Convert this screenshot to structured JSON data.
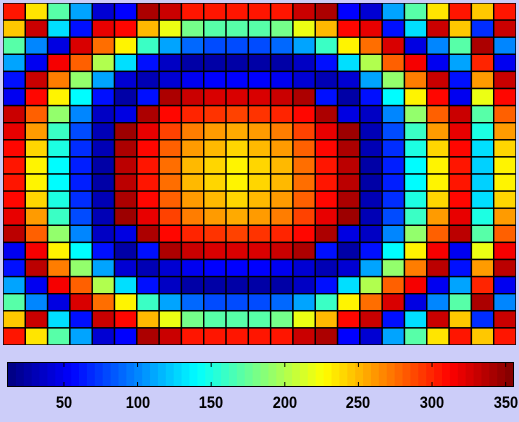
{
  "chart_data": {
    "type": "heatmap",
    "rows": 20,
    "cols": 23,
    "grid": true,
    "colormap": "jet",
    "color_range": [
      12,
      355
    ],
    "cell_values": [
      [
        305,
        235,
        170,
        110,
        40,
        55,
        340,
        330,
        305,
        305,
        305,
        305,
        305,
        330,
        340,
        55,
        40,
        110,
        170,
        235,
        305,
        245,
        305
      ],
      [
        245,
        330,
        130,
        60,
        320,
        310,
        250,
        220,
        180,
        170,
        170,
        170,
        180,
        220,
        250,
        310,
        320,
        60,
        130,
        330,
        245,
        70,
        330
      ],
      [
        170,
        100,
        45,
        325,
        275,
        230,
        160,
        110,
        90,
        80,
        80,
        80,
        90,
        110,
        160,
        230,
        275,
        325,
        45,
        100,
        170,
        340,
        100
      ],
      [
        110,
        50,
        315,
        280,
        200,
        130,
        60,
        35,
        25,
        25,
        25,
        25,
        25,
        35,
        60,
        130,
        200,
        280,
        315,
        50,
        110,
        300,
        50
      ],
      [
        60,
        330,
        270,
        190,
        110,
        40,
        30,
        40,
        50,
        55,
        55,
        55,
        50,
        40,
        30,
        40,
        110,
        190,
        270,
        330,
        60,
        260,
        330
      ],
      [
        50,
        310,
        230,
        140,
        60,
        25,
        60,
        340,
        330,
        325,
        325,
        325,
        330,
        340,
        60,
        25,
        60,
        140,
        230,
        310,
        50,
        220,
        310
      ],
      [
        330,
        280,
        190,
        100,
        35,
        45,
        340,
        310,
        300,
        295,
        290,
        295,
        300,
        310,
        340,
        45,
        35,
        100,
        190,
        280,
        330,
        170,
        280
      ],
      [
        320,
        260,
        160,
        80,
        30,
        345,
        320,
        290,
        270,
        260,
        255,
        260,
        270,
        290,
        320,
        345,
        30,
        80,
        160,
        260,
        320,
        150,
        260
      ],
      [
        310,
        240,
        150,
        70,
        30,
        340,
        310,
        280,
        260,
        250,
        240,
        250,
        260,
        280,
        310,
        340,
        30,
        70,
        150,
        240,
        310,
        130,
        240
      ],
      [
        305,
        230,
        140,
        65,
        25,
        335,
        305,
        275,
        250,
        240,
        230,
        240,
        250,
        275,
        305,
        335,
        25,
        65,
        140,
        230,
        305,
        125,
        230
      ],
      [
        305,
        230,
        140,
        65,
        25,
        335,
        305,
        275,
        250,
        240,
        230,
        240,
        250,
        275,
        305,
        335,
        25,
        65,
        140,
        230,
        305,
        125,
        230
      ],
      [
        310,
        240,
        150,
        70,
        30,
        340,
        310,
        280,
        260,
        250,
        240,
        250,
        260,
        280,
        310,
        340,
        30,
        70,
        150,
        240,
        310,
        130,
        240
      ],
      [
        320,
        260,
        160,
        80,
        30,
        345,
        320,
        290,
        270,
        260,
        255,
        260,
        270,
        290,
        320,
        345,
        30,
        80,
        160,
        260,
        320,
        150,
        260
      ],
      [
        335,
        280,
        190,
        100,
        35,
        45,
        340,
        310,
        300,
        295,
        290,
        295,
        300,
        310,
        340,
        45,
        35,
        100,
        190,
        280,
        335,
        170,
        280
      ],
      [
        50,
        315,
        230,
        140,
        60,
        25,
        60,
        340,
        330,
        325,
        325,
        325,
        330,
        340,
        60,
        25,
        60,
        140,
        230,
        315,
        50,
        220,
        315
      ],
      [
        60,
        335,
        270,
        190,
        110,
        40,
        30,
        40,
        50,
        55,
        55,
        55,
        50,
        40,
        30,
        40,
        110,
        190,
        270,
        335,
        60,
        260,
        335
      ],
      [
        110,
        50,
        315,
        280,
        200,
        130,
        60,
        35,
        25,
        25,
        25,
        25,
        25,
        35,
        60,
        130,
        200,
        280,
        315,
        50,
        110,
        300,
        50
      ],
      [
        170,
        100,
        45,
        325,
        275,
        230,
        160,
        110,
        90,
        80,
        80,
        80,
        90,
        110,
        160,
        230,
        275,
        325,
        45,
        100,
        170,
        340,
        100
      ],
      [
        245,
        330,
        130,
        60,
        330,
        310,
        250,
        220,
        180,
        170,
        170,
        170,
        180,
        220,
        250,
        310,
        330,
        60,
        130,
        330,
        245,
        70,
        330
      ],
      [
        305,
        235,
        170,
        110,
        40,
        55,
        340,
        330,
        305,
        305,
        305,
        305,
        305,
        330,
        340,
        55,
        40,
        110,
        170,
        235,
        305,
        245,
        305
      ]
    ],
    "colorbar": {
      "orientation": "horizontal",
      "range": [
        12,
        355
      ],
      "ticks": [
        50,
        100,
        150,
        200,
        250,
        300,
        350
      ],
      "tick_labels": [
        "50",
        "100",
        "150",
        "200",
        "250",
        "300",
        "350"
      ]
    }
  }
}
